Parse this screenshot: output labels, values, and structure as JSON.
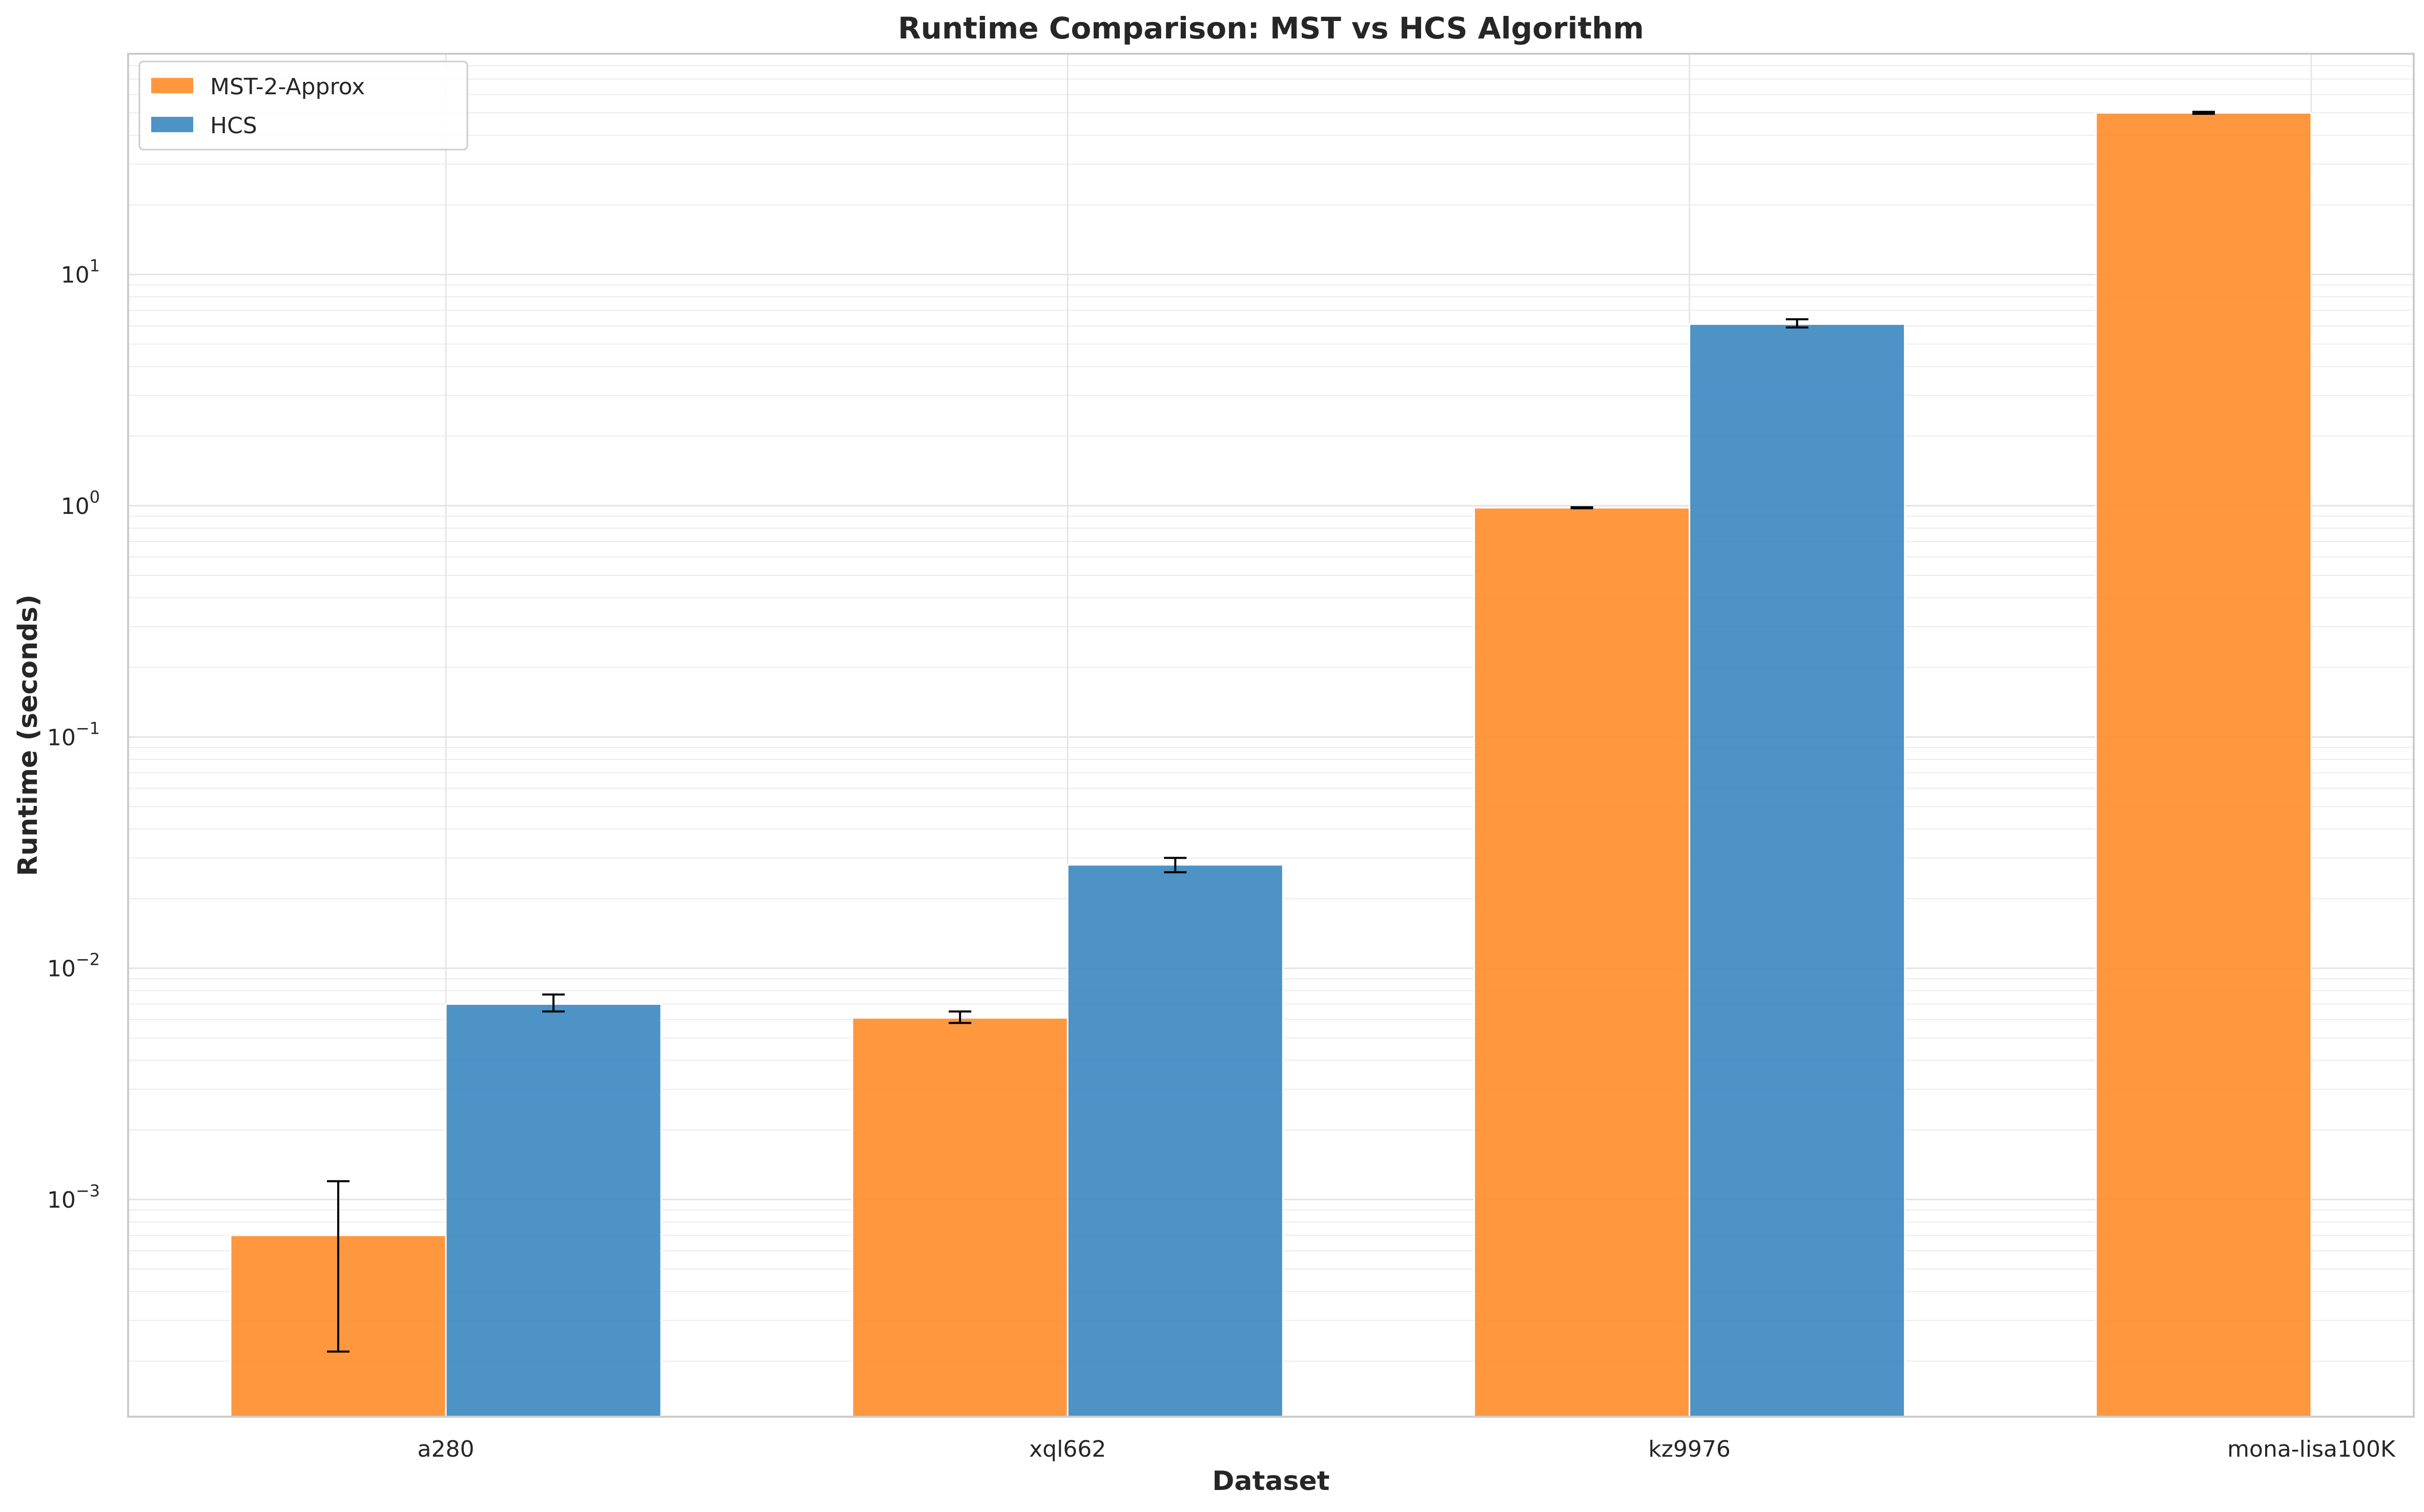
{
  "chart_data": {
    "type": "bar",
    "title": "Runtime Comparison: MST vs HCS Algorithm",
    "xlabel": "Dataset",
    "ylabel": "Runtime (seconds)",
    "yscale": "log",
    "ylim": [
      0.000115,
      90
    ],
    "yticks": [
      {
        "value": 0.001,
        "base": "10",
        "exp": "−3"
      },
      {
        "value": 0.01,
        "base": "10",
        "exp": "−2"
      },
      {
        "value": 0.1,
        "base": "10",
        "exp": "−1"
      },
      {
        "value": 1,
        "base": "10",
        "exp": "0"
      },
      {
        "value": 10,
        "base": "10",
        "exp": "1"
      }
    ],
    "grid": true,
    "legend_position": "top-left",
    "categories": [
      "a280",
      "xql662",
      "kz9976",
      "mona-lisa100K"
    ],
    "series": [
      {
        "name": "MST-2-Approx",
        "color": "#ff8c2a",
        "values": [
          0.0007,
          0.0061,
          0.98,
          50
        ],
        "err_low": [
          0.00022,
          0.0058,
          0.975,
          49.5
        ],
        "err_high": [
          0.0012,
          0.0065,
          0.985,
          50.5
        ]
      },
      {
        "name": "HCS",
        "color": "#3a87c0",
        "values": [
          0.007,
          0.028,
          6.1,
          null
        ],
        "err_low": [
          0.0065,
          0.026,
          5.9,
          null
        ],
        "err_high": [
          0.0077,
          0.03,
          6.4,
          null
        ]
      }
    ]
  }
}
